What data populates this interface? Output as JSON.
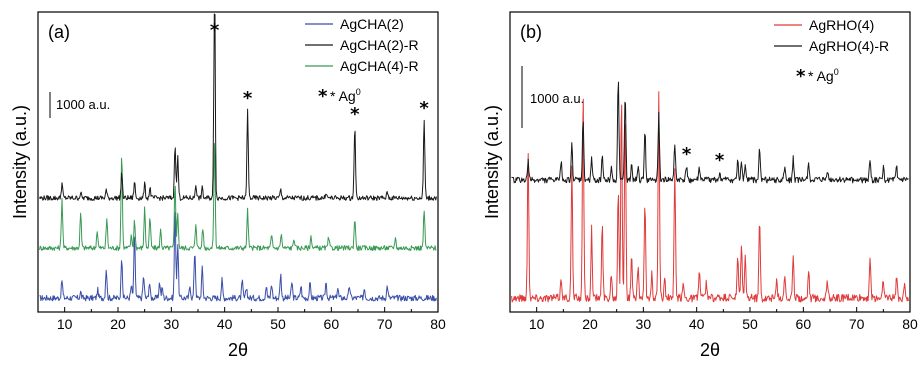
{
  "chart_data": [
    {
      "panel_label": "(a)",
      "type": "line",
      "xlabel": "2θ",
      "ylabel": "Intensity (a.u.)",
      "xlim": [
        5,
        80
      ],
      "xticks": [
        10,
        20,
        30,
        40,
        50,
        60,
        70,
        80
      ],
      "legend_placement": "top-right",
      "scale_bar_label": "1000 a.u.",
      "marker_note": "* Ag",
      "marker_note_sup": "0",
      "marker_symbol": "*",
      "star_positions": [
        38.1,
        44.3,
        64.4,
        77.4
      ],
      "series": [
        {
          "name": "AgCHA(2)",
          "color": "#3a4fa8",
          "baseline": 0,
          "noise": 3,
          "peaks": [
            [
              9.5,
              18
            ],
            [
              13,
              6
            ],
            [
              16.2,
              8
            ],
            [
              17.8,
              30
            ],
            [
              20.7,
              42
            ],
            [
              22.5,
              12
            ],
            [
              23.1,
              62
            ],
            [
              24.8,
              22
            ],
            [
              25.9,
              15
            ],
            [
              27.8,
              16
            ],
            [
              28.3,
              10
            ],
            [
              30.7,
              88
            ],
            [
              31.2,
              55
            ],
            [
              33.5,
              12
            ],
            [
              34.4,
              48
            ],
            [
              35.8,
              30
            ],
            [
              39.5,
              18
            ],
            [
              43.3,
              16
            ],
            [
              44.1,
              10
            ],
            [
              47.8,
              12
            ],
            [
              48.8,
              14
            ],
            [
              50.5,
              24
            ],
            [
              52.6,
              16
            ],
            [
              54.3,
              12
            ],
            [
              56.0,
              14
            ],
            [
              59.0,
              16
            ],
            [
              61.2,
              10
            ],
            [
              63.4,
              12
            ],
            [
              66.2,
              10
            ],
            [
              70.5,
              12
            ]
          ]
        },
        {
          "name": "AgCHA(4)-R",
          "color": "#3a9a55",
          "baseline": 50,
          "noise": 2.5,
          "peaks": [
            [
              9.5,
              50
            ],
            [
              13,
              35
            ],
            [
              16.1,
              18
            ],
            [
              17.9,
              30
            ],
            [
              20.7,
              95
            ],
            [
              22.5,
              12
            ],
            [
              23.1,
              28
            ],
            [
              25.0,
              40
            ],
            [
              26.0,
              30
            ],
            [
              28.0,
              18
            ],
            [
              30.7,
              65
            ],
            [
              31.2,
              35
            ],
            [
              34.6,
              25
            ],
            [
              35.9,
              20
            ],
            [
              38.1,
              110
            ],
            [
              44.3,
              38
            ],
            [
              48.8,
              12
            ],
            [
              50.6,
              14
            ],
            [
              53.0,
              10
            ],
            [
              56.2,
              12
            ],
            [
              59.5,
              10
            ],
            [
              64.4,
              30
            ],
            [
              72.0,
              10
            ],
            [
              77.4,
              38
            ]
          ]
        },
        {
          "name": "AgCHA(2)-R",
          "color": "#1a1a1a",
          "baseline": 100,
          "noise": 2.5,
          "peaks": [
            [
              9.5,
              15
            ],
            [
              13,
              5
            ],
            [
              17.8,
              8
            ],
            [
              20.7,
              25
            ],
            [
              23.1,
              16
            ],
            [
              25.0,
              14
            ],
            [
              26.0,
              10
            ],
            [
              30.7,
              55
            ],
            [
              31.2,
              42
            ],
            [
              34.6,
              14
            ],
            [
              35.8,
              10
            ],
            [
              38.1,
              225
            ],
            [
              44.3,
              88
            ],
            [
              50.5,
              8
            ],
            [
              59.0,
              6
            ],
            [
              64.4,
              72
            ],
            [
              70.5,
              6
            ],
            [
              77.4,
              78
            ]
          ]
        }
      ]
    },
    {
      "panel_label": "(b)",
      "type": "line",
      "xlabel": "2θ",
      "ylabel": "Intensity (a.u.)",
      "xlim": [
        5,
        80
      ],
      "xticks": [
        10,
        20,
        30,
        40,
        50,
        60,
        70,
        80
      ],
      "legend_placement": "top-right",
      "scale_bar_label": "1000 a.u.",
      "marker_note": "* Ag",
      "marker_note_sup": "0",
      "marker_symbol": "*",
      "star_positions": [
        38.1,
        44.3
      ],
      "series": [
        {
          "name": "AgRHO(4)",
          "color": "#e03b3b",
          "baseline": 0,
          "noise": 4,
          "peaks": [
            [
              8.4,
              150
            ],
            [
              14.6,
              20
            ],
            [
              16.6,
              130
            ],
            [
              18.7,
              205
            ],
            [
              20.3,
              70
            ],
            [
              22.3,
              72
            ],
            [
              24.0,
              25
            ],
            [
              25.3,
              110
            ],
            [
              25.9,
              205
            ],
            [
              26.6,
              195
            ],
            [
              27.8,
              40
            ],
            [
              29.0,
              30
            ],
            [
              30.3,
              95
            ],
            [
              31.6,
              25
            ],
            [
              32.9,
              205
            ],
            [
              34.0,
              20
            ],
            [
              35.9,
              130
            ],
            [
              37.5,
              15
            ],
            [
              40.5,
              28
            ],
            [
              41.8,
              15
            ],
            [
              47.7,
              40
            ],
            [
              48.4,
              55
            ],
            [
              49.1,
              45
            ],
            [
              51.8,
              80
            ],
            [
              55.0,
              18
            ],
            [
              56.5,
              25
            ],
            [
              58.1,
              40
            ],
            [
              61.0,
              30
            ],
            [
              64.5,
              18
            ],
            [
              72.5,
              40
            ],
            [
              75.0,
              20
            ],
            [
              77.5,
              22
            ],
            [
              79.0,
              18
            ]
          ]
        },
        {
          "name": "AgRHO(4)-R",
          "color": "#1a1a1a",
          "baseline": 118,
          "noise": 3,
          "peaks": [
            [
              8.4,
              18
            ],
            [
              14.6,
              18
            ],
            [
              16.6,
              35
            ],
            [
              18.7,
              58
            ],
            [
              20.3,
              22
            ],
            [
              22.3,
              25
            ],
            [
              24.0,
              12
            ],
            [
              25.3,
              105
            ],
            [
              26.6,
              85
            ],
            [
              27.8,
              18
            ],
            [
              29.0,
              12
            ],
            [
              30.3,
              50
            ],
            [
              32.9,
              65
            ],
            [
              35.9,
              38
            ],
            [
              38.1,
              14
            ],
            [
              40.5,
              12
            ],
            [
              44.3,
              8
            ],
            [
              47.7,
              18
            ],
            [
              48.4,
              20
            ],
            [
              49.1,
              15
            ],
            [
              51.8,
              32
            ],
            [
              56.5,
              12
            ],
            [
              58.1,
              22
            ],
            [
              61.0,
              16
            ],
            [
              64.5,
              10
            ],
            [
              72.5,
              22
            ],
            [
              75.0,
              12
            ],
            [
              77.5,
              12
            ]
          ]
        }
      ]
    }
  ]
}
